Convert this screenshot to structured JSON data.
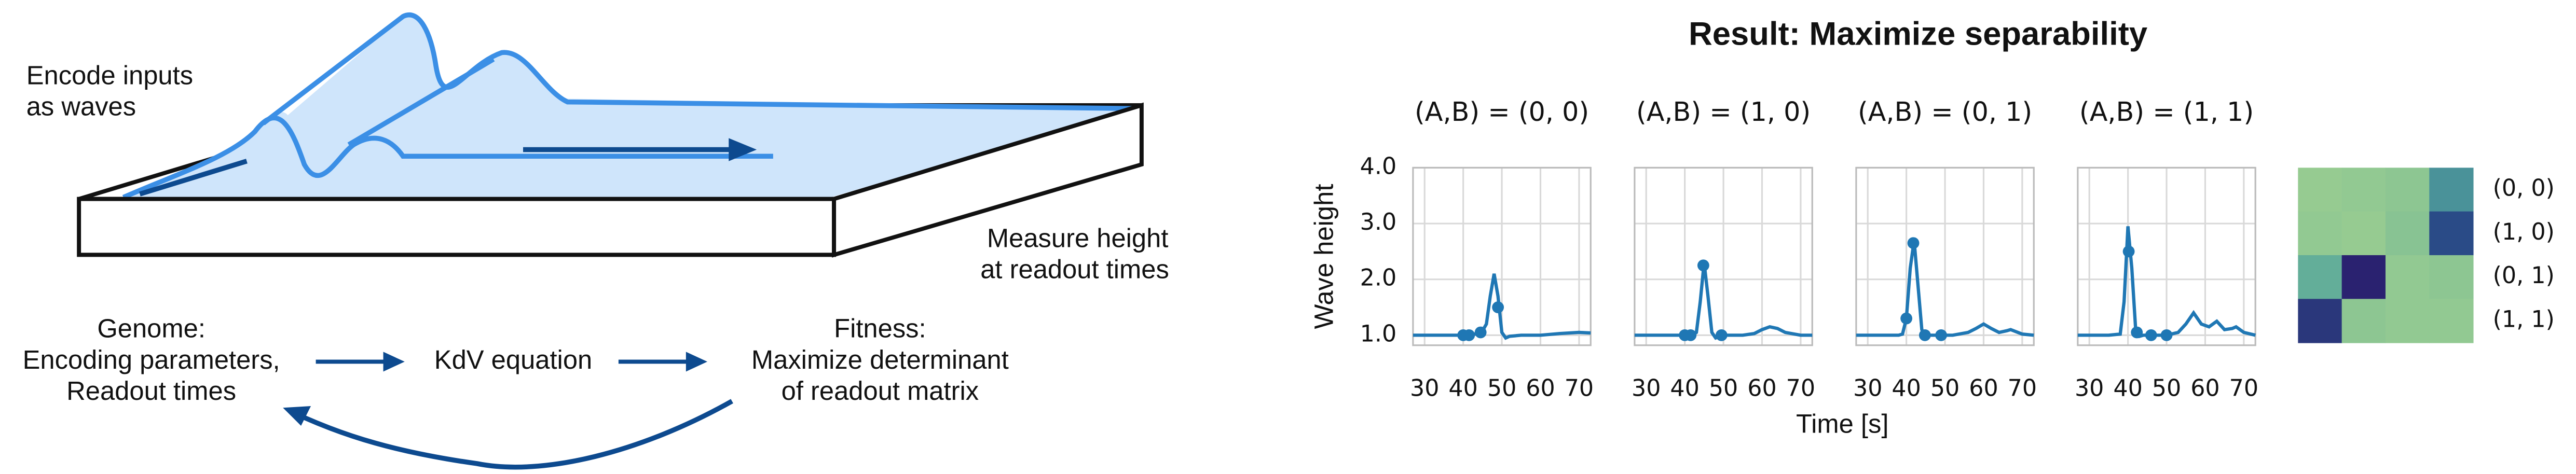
{
  "diagram": {
    "encode": [
      "Encode inputs",
      "as waves"
    ],
    "measure": [
      "Measure height",
      "at readout times"
    ],
    "genome": [
      "Genome:",
      "Encoding parameters,",
      "Readout times"
    ],
    "equation": "KdV equation",
    "fitness": [
      "Fitness:",
      "Maximize determinant",
      "of readout matrix"
    ]
  },
  "figure": {
    "title": "Result: Maximize separability",
    "ylabel": "Wave height",
    "xlabel": "Time [s]"
  },
  "chart_data": [
    {
      "type": "line",
      "title": "(A,B) = (0, 0)",
      "color": "#1f77b4",
      "grid": true,
      "x": [
        27,
        30,
        35,
        40,
        42,
        43,
        44,
        45,
        46,
        47,
        48,
        49,
        50,
        51,
        52,
        55,
        60,
        65,
        70,
        73
      ],
      "values": [
        1.0,
        1.0,
        1.0,
        1.0,
        1.0,
        1.02,
        1.05,
        1.08,
        1.2,
        1.7,
        2.1,
        1.7,
        1.05,
        0.95,
        0.98,
        1.0,
        1.0,
        1.03,
        1.05,
        1.04
      ],
      "points_x": [
        40,
        41.5,
        44.5,
        49
      ],
      "points_values": [
        1.0,
        1.0,
        1.05,
        1.5
      ],
      "xlim": [
        27,
        73
      ],
      "ylim": [
        0.82,
        4.0
      ],
      "xticks": [
        30,
        40,
        50,
        60,
        70
      ],
      "yticks": [
        {
          "value": 1,
          "label": "1.0"
        },
        {
          "value": 2,
          "label": "2.0"
        },
        {
          "value": 3,
          "label": "3.0"
        },
        {
          "value": 4,
          "label": "4.0"
        }
      ]
    },
    {
      "type": "line",
      "title": "(A,B) = (1, 0)",
      "color": "#1f77b4",
      "grid": true,
      "x": [
        27,
        30,
        35,
        40,
        42,
        43,
        44,
        45,
        46,
        47,
        48,
        50,
        55,
        58,
        60,
        62,
        64,
        66,
        70,
        73
      ],
      "values": [
        1.0,
        1.0,
        1.0,
        1.0,
        1.0,
        1.05,
        1.6,
        2.3,
        1.7,
        1.05,
        0.95,
        1.0,
        1.0,
        1.03,
        1.1,
        1.15,
        1.12,
        1.05,
        1.0,
        1.0
      ],
      "points_x": [
        40,
        41.5,
        44.8,
        49.5
      ],
      "points_values": [
        1.0,
        1.0,
        2.25,
        1.0
      ],
      "xlim": [
        27,
        73
      ],
      "ylim": [
        0.82,
        4.0
      ],
      "xticks": [
        30,
        40,
        50,
        60,
        70
      ],
      "yticks": [
        1,
        2,
        3,
        4
      ]
    },
    {
      "type": "line",
      "title": "(A,B) = (0, 1)",
      "color": "#1f77b4",
      "grid": true,
      "x": [
        27,
        30,
        35,
        38,
        39,
        40,
        41,
        42,
        43,
        44,
        45,
        46,
        48,
        52,
        56,
        58,
        60,
        62,
        64,
        66,
        67,
        70,
        73
      ],
      "values": [
        1.0,
        1.0,
        1.0,
        1.0,
        1.02,
        1.3,
        2.2,
        2.7,
        1.9,
        1.1,
        0.98,
        1.0,
        1.0,
        1.0,
        1.05,
        1.12,
        1.2,
        1.12,
        1.05,
        1.08,
        1.1,
        1.02,
        1.0
      ],
      "points_x": [
        40,
        41.8,
        44.8,
        49
      ],
      "points_values": [
        1.3,
        2.65,
        1.0,
        1.0
      ],
      "xlim": [
        27,
        73
      ],
      "ylim": [
        0.82,
        4.0
      ],
      "xticks": [
        30,
        40,
        50,
        60,
        70
      ],
      "yticks": [
        1,
        2,
        3,
        4
      ]
    },
    {
      "type": "line",
      "title": "(A,B) = (1, 1)",
      "color": "#1f77b4",
      "grid": true,
      "x": [
        27,
        30,
        35,
        38,
        39,
        40,
        41,
        42,
        43,
        44,
        46,
        50,
        53,
        55,
        57,
        59,
        61,
        63,
        65,
        67,
        68,
        70,
        73
      ],
      "values": [
        1.0,
        1.0,
        1.0,
        1.02,
        1.6,
        2.95,
        2.2,
        1.1,
        0.98,
        1.0,
        1.0,
        1.0,
        1.05,
        1.2,
        1.4,
        1.2,
        1.15,
        1.25,
        1.1,
        1.12,
        1.15,
        1.05,
        1.0
      ],
      "points_x": [
        40.2,
        42.3,
        46,
        50
      ],
      "points_values": [
        2.5,
        1.05,
        1.0,
        1.0
      ],
      "xlim": [
        27,
        73
      ],
      "ylim": [
        0.82,
        4.0
      ],
      "xticks": [
        30,
        40,
        50,
        60,
        70
      ],
      "yticks": [
        1,
        2,
        3,
        4
      ]
    },
    {
      "type": "heatmap",
      "row_labels": [
        "(0, 0)",
        "(1, 0)",
        "(0, 1)",
        "(1, 1)"
      ],
      "values": [
        [
          0.08,
          0.1,
          0.12,
          0.45
        ],
        [
          0.1,
          0.08,
          0.14,
          0.8
        ],
        [
          0.3,
          1.0,
          0.1,
          0.12
        ],
        [
          0.9,
          0.12,
          0.1,
          0.1
        ]
      ],
      "vlim": [
        0,
        1
      ],
      "colormap": [
        "#a9d68e",
        "#5ba99a",
        "#2a6796",
        "#2a2270"
      ]
    }
  ]
}
